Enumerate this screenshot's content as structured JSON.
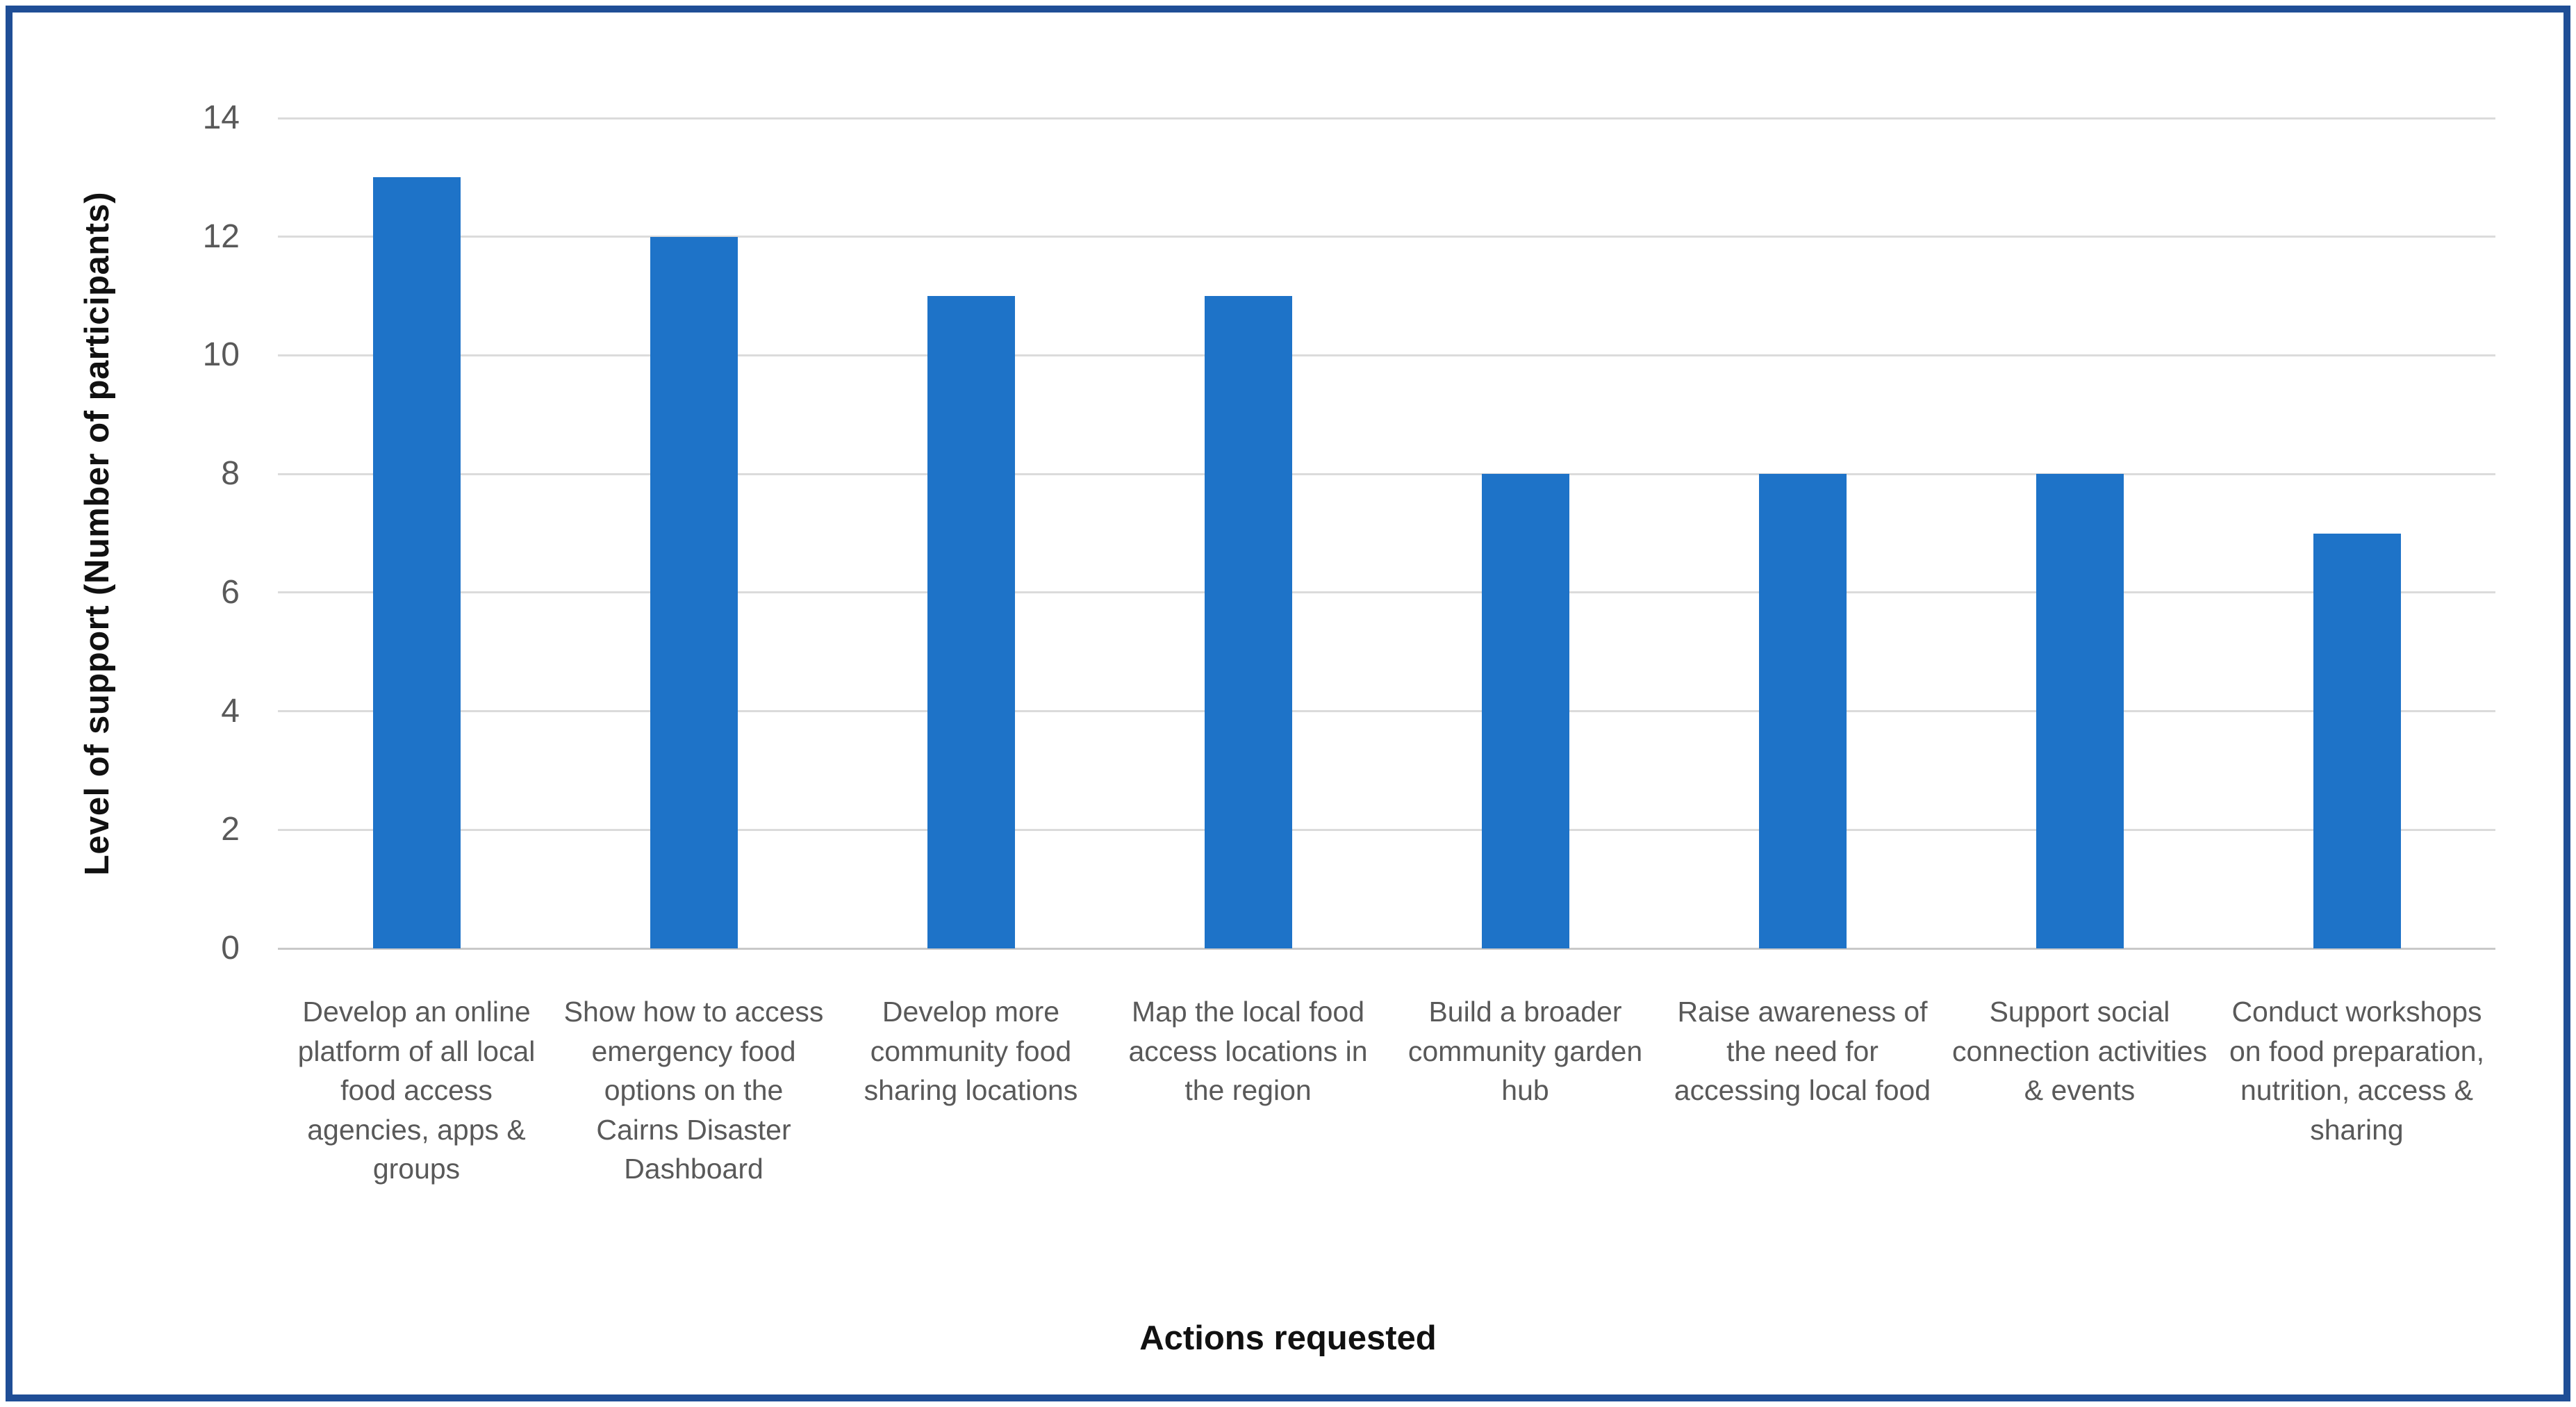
{
  "chart_data": {
    "type": "bar",
    "title": "",
    "xlabel": "Actions requested",
    "ylabel": "Level of support (Number of participants)",
    "ylim": [
      0,
      14
    ],
    "yticks": [
      0,
      2,
      4,
      6,
      8,
      10,
      12,
      14
    ],
    "grid": "horizontal",
    "legend": "none",
    "categories": [
      "Develop an online platform of all local food access agencies, apps & groups",
      "Show how to access emergency food options on the Cairns Disaster Dashboard",
      "Develop more community food sharing locations",
      "Map the local food access locations in the region",
      "Build a broader community garden hub",
      "Raise awareness of the need for accessing local food",
      "Support social connection activities & events",
      "Conduct workshops on food preparation, nutrition, access & sharing"
    ],
    "values": [
      13,
      12,
      11,
      11,
      8,
      8,
      8,
      7
    ]
  },
  "styles": {
    "bar_color": "#1E73C8",
    "gridline_color": "#DBDBDB",
    "axis_line_color": "#C9C9C9",
    "tick_label_color": "#595959",
    "category_label_color": "#595959",
    "axis_title_color": "#111111",
    "frame_border_color": "#1F4E96",
    "background_color": "#FFFFFF"
  }
}
